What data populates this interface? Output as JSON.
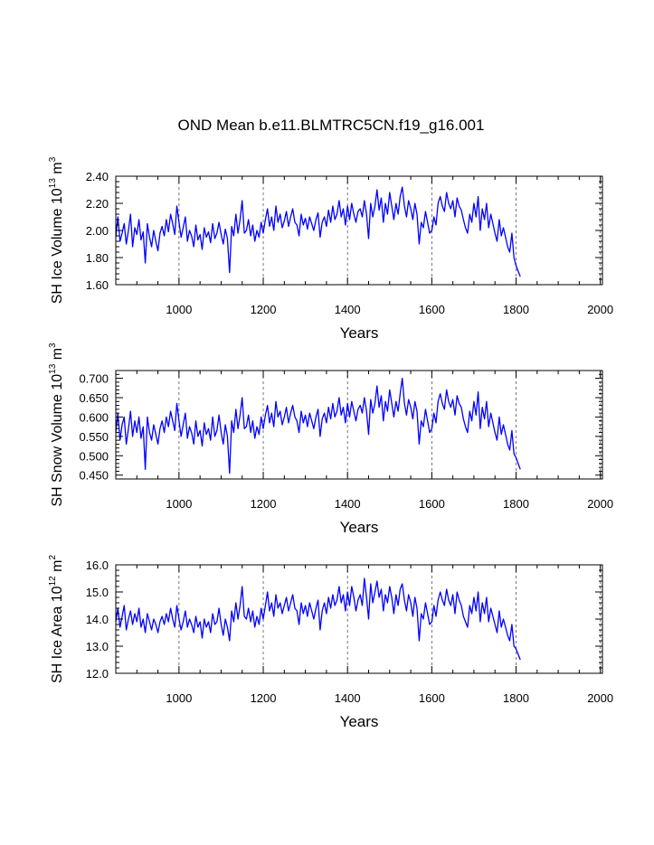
{
  "title": "OND Mean b.e11.BLMTRC5CN.f19_g16.001",
  "colors": {
    "line": "#0000ff",
    "axis": "#000000",
    "grid": "#555555"
  },
  "chart_data": [
    {
      "type": "line",
      "id": "ice-volume",
      "xlabel": "Years",
      "ylabel_main": "SH Ice Volume 10",
      "ylabel_exp": "13",
      "ylabel_unit": "m",
      "ylabel_unit_exp": "3",
      "xlim": [
        850,
        2005
      ],
      "ylim": [
        1.6,
        2.4
      ],
      "xticks": [
        1000,
        1200,
        1400,
        1600,
        1800,
        2000
      ],
      "yticks": [
        1.6,
        1.8,
        2.0,
        2.2,
        2.4
      ],
      "ytick_labels": [
        "1.60",
        "1.80",
        "2.00",
        "2.20",
        "2.40"
      ],
      "vlines": [
        1000,
        1200,
        1400,
        1600,
        1800,
        2000
      ],
      "series": [
        {
          "name": "SH Ice Volume",
          "x_start": 850,
          "x_step": 5,
          "values": [
            1.95,
            2.1,
            1.92,
            1.98,
            2.05,
            1.9,
            2.0,
            2.12,
            1.88,
            2.02,
            1.97,
            2.08,
            1.93,
            1.99,
            1.76,
            2.05,
            1.95,
            1.88,
            2.0,
            1.92,
            1.85,
            1.98,
            2.03,
            1.96,
            2.08,
            1.99,
            2.12,
            2.05,
            1.97,
            2.18,
            2.06,
            1.95,
            2.02,
            2.1,
            1.92,
            2.0,
            1.96,
            1.88,
            2.04,
            1.93,
            1.97,
            1.86,
            2.02,
            1.95,
            1.99,
            1.91,
            2.05,
            1.94,
            1.98,
            2.06,
            1.97,
            1.9,
            2.01,
            1.94,
            1.69,
            2.03,
            1.96,
            2.12,
            1.98,
            2.08,
            2.22,
            1.98,
            2.0,
            2.08,
            1.96,
            2.04,
            1.92,
            2.0,
            1.95,
            2.06,
            1.98,
            2.08,
            2.16,
            2.03,
            2.1,
            2.0,
            2.18,
            2.06,
            2.12,
            2.02,
            2.07,
            2.14,
            2.03,
            2.1,
            2.16,
            2.06,
            2.04,
            1.96,
            2.12,
            2.04,
            2.09,
            2.01,
            2.1,
            2.05,
            2.0,
            2.08,
            2.13,
            1.95,
            2.06,
            2.1,
            2.03,
            2.15,
            2.06,
            2.18,
            2.08,
            2.12,
            2.22,
            2.1,
            2.16,
            2.04,
            2.18,
            2.08,
            2.2,
            2.12,
            2.06,
            2.14,
            2.16,
            2.1,
            2.22,
            2.12,
            1.94,
            2.2,
            2.1,
            2.18,
            2.3,
            2.15,
            2.24,
            2.06,
            2.2,
            2.12,
            2.28,
            2.18,
            2.08,
            2.2,
            2.12,
            2.25,
            2.32,
            2.18,
            2.1,
            2.22,
            2.16,
            2.08,
            2.2,
            2.12,
            1.9,
            2.06,
            2.02,
            2.14,
            2.06,
            1.98,
            2.0,
            2.1,
            2.04,
            2.2,
            2.25,
            2.18,
            2.14,
            2.28,
            2.2,
            2.16,
            2.22,
            2.1,
            2.24,
            2.18,
            2.15,
            2.08,
            2.02,
            1.98,
            2.12,
            2.06,
            2.2,
            2.1,
            2.25,
            2.0,
            2.16,
            2.08,
            2.2,
            2.02,
            2.12,
            2.05,
            1.98,
            1.92,
            2.08,
            1.96,
            2.02,
            1.95,
            1.88,
            1.84,
            1.98,
            1.8,
            1.74,
            1.7,
            1.66
          ]
        }
      ]
    },
    {
      "type": "line",
      "id": "snow-volume",
      "xlabel": "Years",
      "ylabel_main": "SH Snow Volume 10",
      "ylabel_exp": "13",
      "ylabel_unit": "m",
      "ylabel_unit_exp": "3",
      "xlim": [
        850,
        2005
      ],
      "ylim": [
        0.44,
        0.72
      ],
      "xticks": [
        1000,
        1200,
        1400,
        1600,
        1800,
        2000
      ],
      "yticks": [
        0.45,
        0.5,
        0.55,
        0.6,
        0.65,
        0.7
      ],
      "ytick_labels": [
        "0.450",
        "0.500",
        "0.550",
        "0.600",
        "0.650",
        "0.700"
      ],
      "vlines": [
        1000,
        1200,
        1400,
        1600,
        1800,
        2000
      ],
      "series": [
        {
          "name": "SH Snow Volume",
          "x_start": 850,
          "x_step": 5,
          "values": [
            0.56,
            0.61,
            0.54,
            0.58,
            0.6,
            0.53,
            0.57,
            0.615,
            0.55,
            0.59,
            0.56,
            0.6,
            0.545,
            0.575,
            0.465,
            0.6,
            0.56,
            0.54,
            0.58,
            0.555,
            0.53,
            0.57,
            0.59,
            0.56,
            0.6,
            0.575,
            0.615,
            0.59,
            0.565,
            0.635,
            0.59,
            0.55,
            0.58,
            0.61,
            0.545,
            0.575,
            0.56,
            0.53,
            0.59,
            0.55,
            0.565,
            0.525,
            0.585,
            0.555,
            0.57,
            0.54,
            0.6,
            0.55,
            0.565,
            0.605,
            0.56,
            0.53,
            0.58,
            0.55,
            0.455,
            0.59,
            0.56,
            0.62,
            0.57,
            0.605,
            0.65,
            0.57,
            0.575,
            0.605,
            0.56,
            0.59,
            0.545,
            0.575,
            0.555,
            0.6,
            0.57,
            0.605,
            0.63,
            0.585,
            0.61,
            0.575,
            0.64,
            0.6,
            0.615,
            0.58,
            0.6,
            0.625,
            0.585,
            0.61,
            0.63,
            0.6,
            0.59,
            0.56,
            0.615,
            0.585,
            0.605,
            0.575,
            0.61,
            0.59,
            0.57,
            0.6,
            0.62,
            0.55,
            0.595,
            0.61,
            0.585,
            0.625,
            0.595,
            0.635,
            0.6,
            0.615,
            0.65,
            0.605,
            0.625,
            0.585,
            0.635,
            0.6,
            0.64,
            0.615,
            0.59,
            0.62,
            0.63,
            0.61,
            0.65,
            0.615,
            0.555,
            0.645,
            0.61,
            0.635,
            0.68,
            0.625,
            0.655,
            0.59,
            0.64,
            0.615,
            0.67,
            0.635,
            0.6,
            0.64,
            0.615,
            0.66,
            0.7,
            0.635,
            0.605,
            0.645,
            0.625,
            0.595,
            0.64,
            0.615,
            0.53,
            0.59,
            0.575,
            0.62,
            0.59,
            0.56,
            0.57,
            0.61,
            0.585,
            0.64,
            0.66,
            0.635,
            0.62,
            0.67,
            0.64,
            0.625,
            0.645,
            0.605,
            0.655,
            0.635,
            0.625,
            0.595,
            0.575,
            0.56,
            0.615,
            0.59,
            0.64,
            0.605,
            0.665,
            0.57,
            0.625,
            0.595,
            0.64,
            0.575,
            0.61,
            0.585,
            0.56,
            0.54,
            0.6,
            0.555,
            0.58,
            0.555,
            0.53,
            0.515,
            0.565,
            0.505,
            0.495,
            0.48,
            0.465
          ]
        }
      ]
    },
    {
      "type": "line",
      "id": "ice-area",
      "xlabel": "Years",
      "ylabel_main": "SH Ice Area 10",
      "ylabel_exp": "12",
      "ylabel_unit": "m",
      "ylabel_unit_exp": "2",
      "xlim": [
        850,
        2005
      ],
      "ylim": [
        12.0,
        16.0
      ],
      "xticks": [
        1000,
        1200,
        1400,
        1600,
        1800,
        2000
      ],
      "yticks": [
        12.0,
        13.0,
        14.0,
        15.0,
        16.0
      ],
      "ytick_labels": [
        "12.0",
        "13.0",
        "14.0",
        "15.0",
        "16.0"
      ],
      "vlines": [
        1000,
        1200,
        1400,
        1600,
        1800,
        2000
      ],
      "series": [
        {
          "name": "SH Ice Area",
          "x_start": 850,
          "x_step": 5,
          "values": [
            13.9,
            14.4,
            13.7,
            14.1,
            14.5,
            13.6,
            14.0,
            14.3,
            13.8,
            14.2,
            13.9,
            14.4,
            13.7,
            14.0,
            13.5,
            14.2,
            13.9,
            13.6,
            14.0,
            13.8,
            13.5,
            13.9,
            14.1,
            13.8,
            14.2,
            13.9,
            14.4,
            14.0,
            13.7,
            14.5,
            14.0,
            13.6,
            13.9,
            14.3,
            13.7,
            14.0,
            13.8,
            13.5,
            14.1,
            13.7,
            13.9,
            13.3,
            14.0,
            13.7,
            13.9,
            13.5,
            14.2,
            13.8,
            13.9,
            14.4,
            13.8,
            13.4,
            14.0,
            13.7,
            13.2,
            14.3,
            13.9,
            14.6,
            14.0,
            14.5,
            15.2,
            14.1,
            14.0,
            14.4,
            13.9,
            14.3,
            13.7,
            14.1,
            13.8,
            14.4,
            14.0,
            14.5,
            15.0,
            14.3,
            14.6,
            14.1,
            14.9,
            14.4,
            14.6,
            14.2,
            14.5,
            14.8,
            14.3,
            14.6,
            14.9,
            14.4,
            14.3,
            13.8,
            14.6,
            14.2,
            14.5,
            14.1,
            14.6,
            14.3,
            14.0,
            14.4,
            14.7,
            13.6,
            14.3,
            14.6,
            14.2,
            14.8,
            14.4,
            14.9,
            14.5,
            14.7,
            15.2,
            14.6,
            14.9,
            14.3,
            15.0,
            14.5,
            15.2,
            14.8,
            14.3,
            14.7,
            14.9,
            14.5,
            15.5,
            14.8,
            14.0,
            15.3,
            14.6,
            15.0,
            15.4,
            14.8,
            15.1,
            14.3,
            14.9,
            14.6,
            15.2,
            14.8,
            14.2,
            14.9,
            14.5,
            15.1,
            15.3,
            14.7,
            14.3,
            14.9,
            14.6,
            14.1,
            14.8,
            14.4,
            13.2,
            14.2,
            14.0,
            14.6,
            14.2,
            13.8,
            13.9,
            14.5,
            14.1,
            14.7,
            15.0,
            14.7,
            14.5,
            15.1,
            14.7,
            14.5,
            14.9,
            14.2,
            15.0,
            14.7,
            14.5,
            14.1,
            13.9,
            13.7,
            14.5,
            14.2,
            14.8,
            14.3,
            15.0,
            13.9,
            14.6,
            14.2,
            14.8,
            13.9,
            14.4,
            14.1,
            13.8,
            13.5,
            14.3,
            13.7,
            14.0,
            13.7,
            13.4,
            13.2,
            13.8,
            13.0,
            12.9,
            12.7,
            12.5
          ]
        }
      ]
    }
  ]
}
